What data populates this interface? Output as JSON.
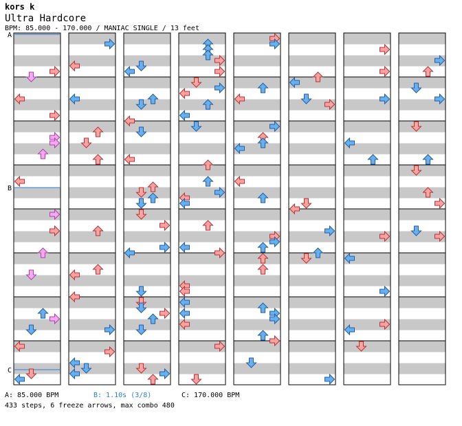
{
  "song": {
    "artist": "kors k",
    "difficulty": "Ultra Hardcore",
    "info_line": "BPM: 85.000 - 170.000 / MANIAC SINGLE / 13 feet"
  },
  "markers": [
    {
      "label": "A"
    },
    {
      "label": "B"
    },
    {
      "label": "C"
    }
  ],
  "legend": {
    "a": "A: 85.000 BPM",
    "b": "B: 1.10s (3/8)",
    "c": "C: 170.000 BPM"
  },
  "stats": "433 steps, 6 freeze arrows, max combo 480",
  "colors": {
    "stripe": "#c8c8c8",
    "arrow_red": "#f5a3a3",
    "arrow_red_stroke": "#c03030",
    "arrow_blue": "#6aaeea",
    "arrow_blue_stroke": "#1f5fae",
    "arrow_pink": "#f2a9ee",
    "arrow_pink_stroke": "#b040b0",
    "bpm_line": "#2a7dd8"
  }
}
